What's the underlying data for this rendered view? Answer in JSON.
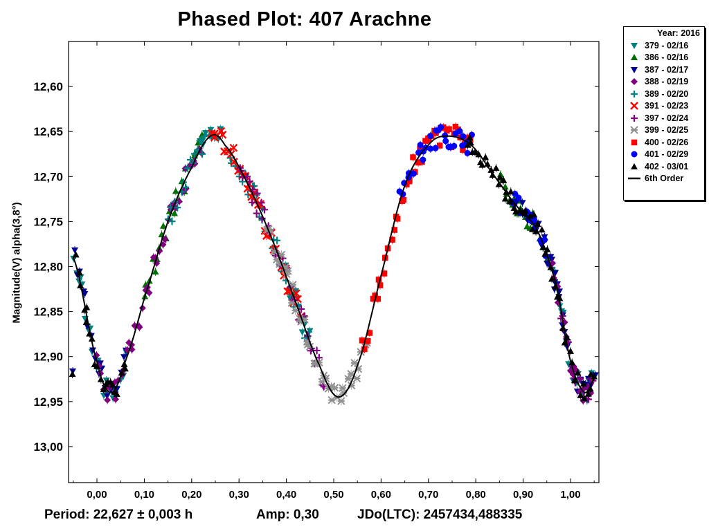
{
  "chart_data": {
    "type": "scatter",
    "title": "Phased Plot: 407 Arachne",
    "ylabel": "Magnitude(V) alpha(3,8°)",
    "xlim": [
      -0.06,
      1.06
    ],
    "ylim": [
      13.04,
      12.55
    ],
    "y_inverted": true,
    "xticks": [
      "0,00",
      "0,10",
      "0,20",
      "0,30",
      "0,40",
      "0,50",
      "0,60",
      "0,70",
      "0,80",
      "0,90",
      "1,00"
    ],
    "yticks": [
      "12,60",
      "12,65",
      "12,70",
      "12,75",
      "12,80",
      "12,85",
      "12,90",
      "12,95",
      "13,00"
    ],
    "legend_title": "Year: 2016",
    "legend_position": "outside-top-right",
    "series": [
      {
        "name": "379 - 02/16",
        "marker": "triangle-down",
        "color": "#008080",
        "x_ranges": [
          [
            -0.05,
            0.06
          ],
          [
            0.21,
            0.26
          ],
          [
            0.4,
            0.45
          ],
          [
            0.96,
            1.05
          ]
        ]
      },
      {
        "name": "386 - 02/16",
        "marker": "triangle-up",
        "color": "#007000",
        "x_ranges": [
          [
            0.1,
            0.22
          ],
          [
            0.85,
            0.95
          ]
        ]
      },
      {
        "name": "387 - 02/17",
        "marker": "triangle-down",
        "color": "#000090",
        "x_ranges": [
          [
            -0.05,
            0.06
          ],
          [
            0.88,
            0.98
          ],
          [
            0.96,
            1.05
          ]
        ]
      },
      {
        "name": "388 - 02/19",
        "marker": "diamond",
        "color": "#800080",
        "x_ranges": [
          [
            0.0,
            0.22
          ],
          [
            0.96,
            1.04
          ]
        ]
      },
      {
        "name": "389 - 02/20",
        "marker": "plus",
        "color": "#008080",
        "x_ranges": [
          [
            0.15,
            0.24
          ],
          [
            0.28,
            0.45
          ]
        ]
      },
      {
        "name": "391 - 02/23",
        "marker": "x",
        "color": "#ff0000",
        "x_ranges": [
          [
            0.24,
            0.43
          ]
        ]
      },
      {
        "name": "397 - 02/24",
        "marker": "plus",
        "color": "#800080",
        "x_ranges": [
          [
            0.3,
            0.48
          ],
          [
            0.98,
            1.05
          ]
        ]
      },
      {
        "name": "399 - 02/25",
        "marker": "asterisk",
        "color": "#909090",
        "x_ranges": [
          [
            0.36,
            0.57
          ]
        ]
      },
      {
        "name": "400 - 02/26",
        "marker": "square",
        "color": "#ff0000",
        "x_ranges": [
          [
            0.56,
            0.79
          ]
        ]
      },
      {
        "name": "401 - 02/29",
        "marker": "circle",
        "color": "#0000ff",
        "x_ranges": [
          [
            0.64,
            0.79
          ],
          [
            0.88,
            0.95
          ]
        ]
      },
      {
        "name": "402 - 03/01",
        "marker": "triangle-up",
        "color": "#000000",
        "x_ranges": [
          [
            -0.05,
            0.06
          ],
          [
            0.78,
            1.05
          ]
        ]
      }
    ],
    "fit": {
      "name": "6th Order",
      "color": "#000000",
      "points": [
        [
          -0.05,
          12.79
        ],
        [
          0.0,
          12.905
        ],
        [
          0.03,
          12.94
        ],
        [
          0.06,
          12.905
        ],
        [
          0.1,
          12.835
        ],
        [
          0.15,
          12.75
        ],
        [
          0.2,
          12.69
        ],
        [
          0.24,
          12.655
        ],
        [
          0.27,
          12.665
        ],
        [
          0.32,
          12.71
        ],
        [
          0.37,
          12.77
        ],
        [
          0.42,
          12.84
        ],
        [
          0.47,
          12.91
        ],
        [
          0.51,
          12.945
        ],
        [
          0.55,
          12.91
        ],
        [
          0.6,
          12.81
        ],
        [
          0.65,
          12.71
        ],
        [
          0.7,
          12.665
        ],
        [
          0.74,
          12.655
        ],
        [
          0.79,
          12.665
        ],
        [
          0.84,
          12.7
        ],
        [
          0.89,
          12.735
        ],
        [
          0.93,
          12.76
        ],
        [
          0.97,
          12.82
        ],
        [
          1.0,
          12.905
        ],
        [
          1.03,
          12.94
        ],
        [
          1.05,
          12.925
        ]
      ]
    }
  },
  "footer": {
    "period": "Period: 22,627 ± 0,003 h",
    "amp": "Amp: 0,30",
    "jdo": "JDo(LTC): 2457434,488335"
  }
}
